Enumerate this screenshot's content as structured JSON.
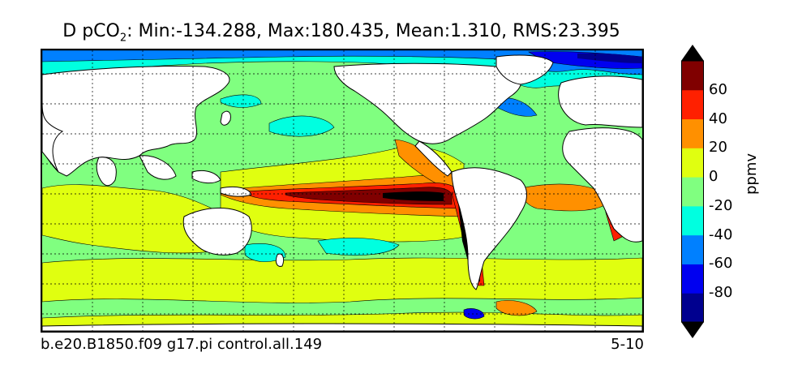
{
  "title": {
    "prefix": "D pCO",
    "subscript": "2",
    "suffix": ": Min:-134.288, Max:180.435, Mean:1.310, RMS:23.395"
  },
  "footer": {
    "case_name": "b.e20.B1850.f09 g17.pi control.all.149",
    "years": "5-10"
  },
  "colorbar": {
    "label": "ppmv",
    "ticks": [
      "60",
      "40",
      "20",
      "0",
      "-20",
      "-40",
      "-60",
      "-80"
    ],
    "levels": [
      -100,
      -80,
      -60,
      -40,
      -20,
      0,
      20,
      40,
      60,
      80
    ],
    "colors": [
      "#00008f",
      "#0000f0",
      "#0080ff",
      "#00ffe0",
      "#80ff80",
      "#e0ff10",
      "#ff9000",
      "#ff2000",
      "#800000"
    ],
    "extend_min_color": "#000000",
    "extend_max_color": "#000000"
  },
  "map": {
    "projection": "global lon 20E-380E, lat 80S-90N",
    "land_color": "#ffffff",
    "gridlines": "dotted"
  }
}
